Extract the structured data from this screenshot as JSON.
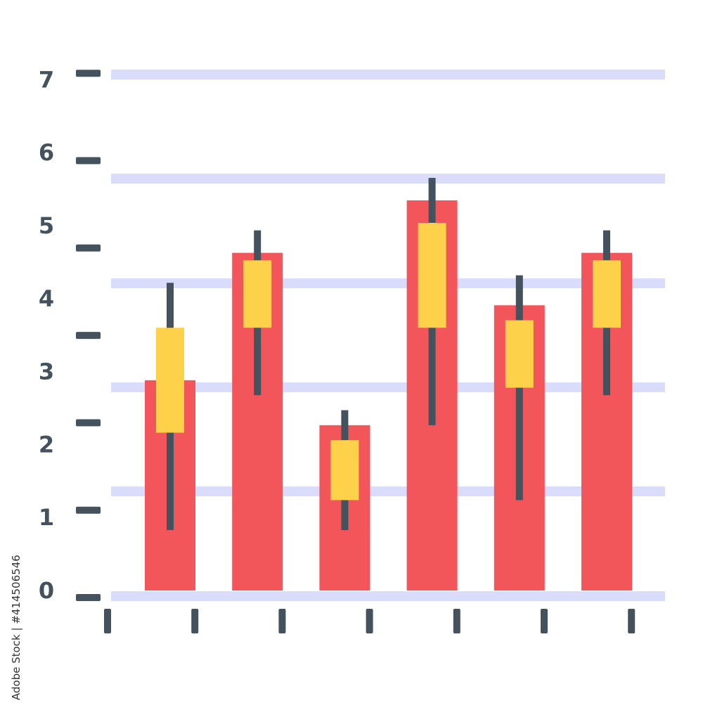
{
  "chart_data": {
    "type": "bar",
    "title": "",
    "xlabel": "",
    "ylabel": "",
    "ylim": [
      0,
      7
    ],
    "y_ticks": [
      "0",
      "1",
      "2",
      "3",
      "4",
      "5",
      "6",
      "7"
    ],
    "grid": true,
    "values": [
      2.9,
      4.6,
      2.3,
      5.3,
      3.9,
      4.6
    ],
    "candles": [
      {
        "low": 0.9,
        "open": 2.2,
        "close": 3.6,
        "high": 4.2
      },
      {
        "low": 2.7,
        "open": 3.6,
        "close": 4.5,
        "high": 4.9
      },
      {
        "low": 0.9,
        "open": 1.3,
        "close": 2.1,
        "high": 2.5
      },
      {
        "low": 2.3,
        "open": 3.6,
        "close": 5.0,
        "high": 5.6
      },
      {
        "low": 1.3,
        "open": 2.8,
        "close": 3.7,
        "high": 4.3
      },
      {
        "low": 2.7,
        "open": 3.6,
        "close": 4.5,
        "high": 4.9
      }
    ]
  },
  "colors": {
    "bar": "#f2565b",
    "candle_body": "#fdd14a",
    "wick": "#44525e",
    "axis_tick": "#44525e",
    "grid": "#dadcfb"
  },
  "watermark": "Adobe Stock | #414506546"
}
